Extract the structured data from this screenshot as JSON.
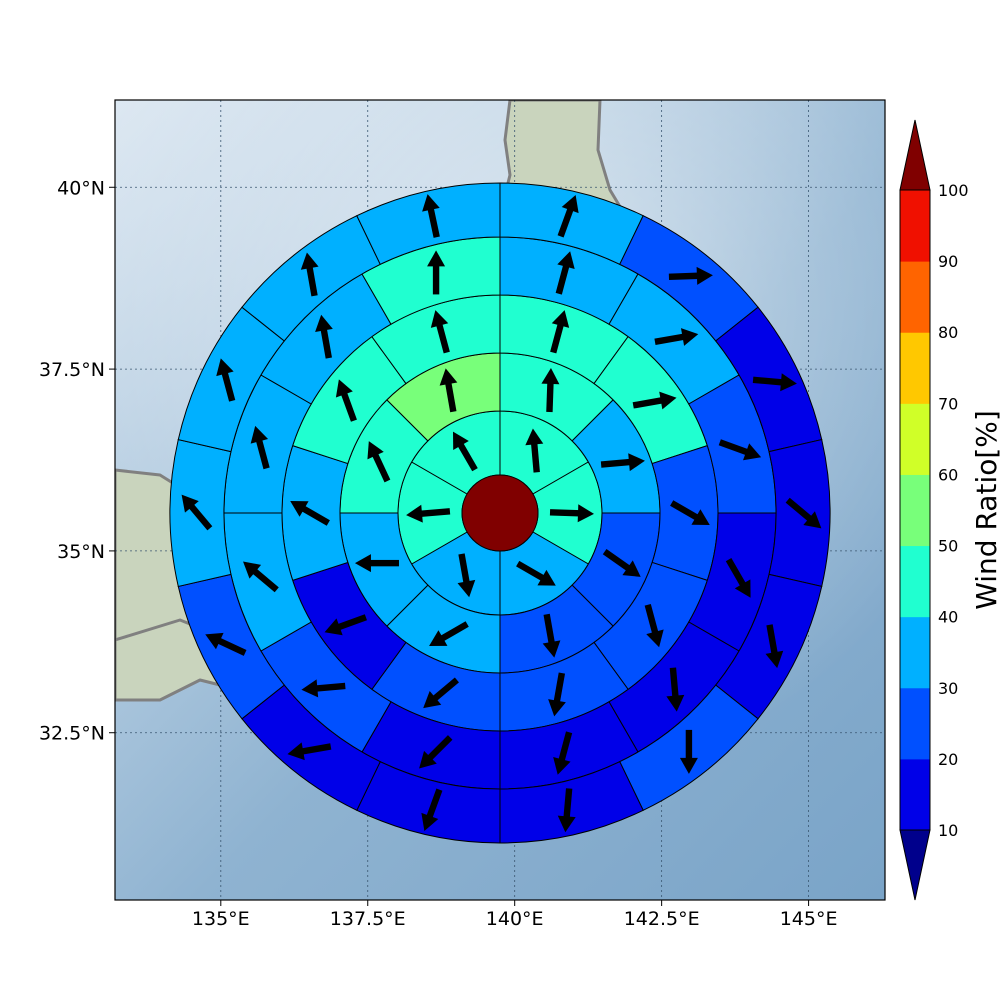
{
  "map": {
    "lon_range": [
      133.2,
      146.3
    ],
    "lat_range": [
      30.2,
      41.2
    ],
    "lon_ticks": [
      {
        "value": 135.0,
        "label": "135°E"
      },
      {
        "value": 137.5,
        "label": "137.5°E"
      },
      {
        "value": 140.0,
        "label": "140°E"
      },
      {
        "value": 142.5,
        "label": "142.5°E"
      },
      {
        "value": 145.0,
        "label": "145°E"
      }
    ],
    "lat_ticks": [
      {
        "value": 40.0,
        "label": "40°N"
      },
      {
        "value": 37.5,
        "label": "37.5°N"
      },
      {
        "value": 35.0,
        "label": "35°N"
      },
      {
        "value": 32.5,
        "label": "32.5°N"
      }
    ],
    "gridlines": true,
    "colors": {
      "sea": "#8fb3d1",
      "sea_highlight": "#dde8f2",
      "land": "#c9d4bd",
      "coastline": "#808080",
      "center_fill": "#800000",
      "arrow": "#000000",
      "cell_edge": "#000000"
    }
  },
  "colorbar": {
    "title": "Wind Ratio[%]",
    "ticks": [
      "10",
      "20",
      "30",
      "40",
      "50",
      "60",
      "70",
      "80",
      "90",
      "100"
    ],
    "bins": [
      {
        "from": 10,
        "to": 20,
        "color": "#0000e8"
      },
      {
        "from": 20,
        "to": 30,
        "color": "#0050ff"
      },
      {
        "from": 30,
        "to": 40,
        "color": "#00b0ff"
      },
      {
        "from": 40,
        "to": 50,
        "color": "#20ffd0"
      },
      {
        "from": 50,
        "to": 60,
        "color": "#78ff7a"
      },
      {
        "from": 60,
        "to": 70,
        "color": "#d0ff28"
      },
      {
        "from": 70,
        "to": 80,
        "color": "#ffc800"
      },
      {
        "from": 80,
        "to": 90,
        "color": "#ff6400"
      },
      {
        "from": 90,
        "to": 100,
        "color": "#f01000"
      }
    ],
    "under_color": "#00008c",
    "over_color": "#800000",
    "extend": "both"
  },
  "chart_data": {
    "type": "polar-grid",
    "center": {
      "lon": 139.75,
      "lat": 35.65
    },
    "value_range": [
      10,
      100
    ],
    "rings": [
      {
        "sectors": 6,
        "rotation_deg": 0,
        "arrow_radius": 0.29,
        "values": [
          44,
          44,
          30,
          32,
          43,
          42
        ],
        "directions": [
          355,
          92,
          120,
          170,
          265,
          330
        ]
      },
      {
        "sectors": 8,
        "rotation_deg": 0,
        "arrow_radius": 0.475,
        "values": [
          43,
          35,
          25,
          28,
          30,
          30,
          42,
          52
        ],
        "directions": [
          2,
          85,
          125,
          170,
          240,
          270,
          335,
          350
        ]
      },
      {
        "sectors": 10,
        "rotation_deg": 0,
        "arrow_radius": 0.635,
        "values": [
          44,
          42,
          24,
          22,
          22,
          20,
          18,
          30,
          42,
          41
        ],
        "directions": [
          15,
          80,
          120,
          165,
          190,
          230,
          250,
          300,
          340,
          345
        ]
      },
      {
        "sectors": 12,
        "rotation_deg": 0,
        "arrow_radius": 0.79,
        "values": [
          35,
          32,
          20,
          14,
          17,
          17,
          18,
          24,
          32,
          37,
          36,
          42
        ],
        "directions": [
          15,
          80,
          110,
          150,
          175,
          195,
          225,
          265,
          310,
          345,
          350,
          360
        ]
      },
      {
        "sectors": 14,
        "rotation_deg": 0,
        "arrow_radius": 0.935,
        "values": [
          32,
          20,
          15,
          15,
          14,
          20,
          17,
          14,
          18,
          22,
          33,
          35,
          34,
          33
        ],
        "directions": [
          20,
          88,
          95,
          130,
          170,
          180,
          185,
          200,
          260,
          295,
          320,
          345,
          350,
          348
        ]
      }
    ]
  }
}
